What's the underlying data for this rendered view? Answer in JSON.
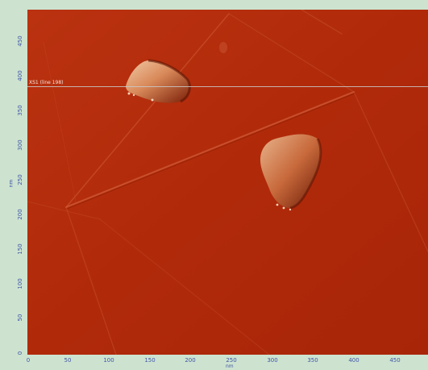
{
  "image": {
    "background_color": "#b32b0b",
    "axis_color": "#3f55a5"
  },
  "y_axis": {
    "unit": "nm",
    "ticks": [
      "0",
      "50",
      "100",
      "150",
      "200",
      "250",
      "300",
      "350",
      "400",
      "450"
    ]
  },
  "x_axis": {
    "unit": "nm",
    "ticks": [
      "0",
      "50",
      "100",
      "150",
      "200",
      "250",
      "300",
      "350",
      "400",
      "450"
    ]
  },
  "scan_line": {
    "label": "XS1 (line 198)"
  }
}
